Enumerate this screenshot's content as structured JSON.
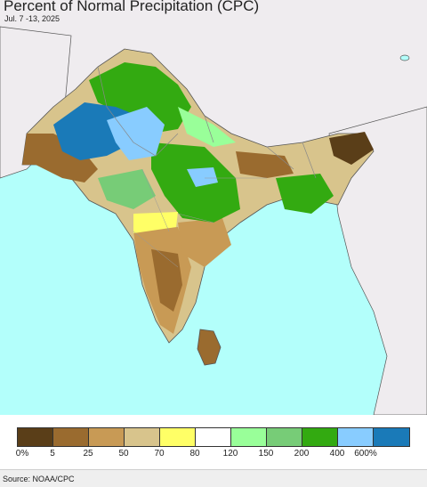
{
  "header": {
    "title": "Percent of Normal Precipitation (CPC)",
    "subtitle": "Jul. 7 -13, 2025"
  },
  "legend": {
    "swatches": [
      {
        "color": "#5a3e18",
        "name": "0-5"
      },
      {
        "color": "#9a6b2f",
        "name": "5-25"
      },
      {
        "color": "#c89a55",
        "name": "25-50"
      },
      {
        "color": "#d8c48c",
        "name": "50-70"
      },
      {
        "color": "#ffff66",
        "name": "70-80"
      },
      {
        "color": "#ffffff",
        "name": "80-120"
      },
      {
        "color": "#99ff99",
        "name": "120-150"
      },
      {
        "color": "#77cc77",
        "name": "150-200"
      },
      {
        "color": "#33aa11",
        "name": "200-400"
      },
      {
        "color": "#88ccff",
        "name": "400-600"
      },
      {
        "color": "#1a7ab8",
        "name": ">600"
      }
    ],
    "ticks": [
      "0%",
      "5",
      "25",
      "50",
      "70",
      "80",
      "120",
      "150",
      "200",
      "400",
      "600%"
    ]
  },
  "footer": {
    "source": "Source: NOAA/CPC"
  },
  "map": {
    "ocean_color": "#b3fffb",
    "land_outside_color": "#efecef",
    "boundary_color": "#888888"
  }
}
